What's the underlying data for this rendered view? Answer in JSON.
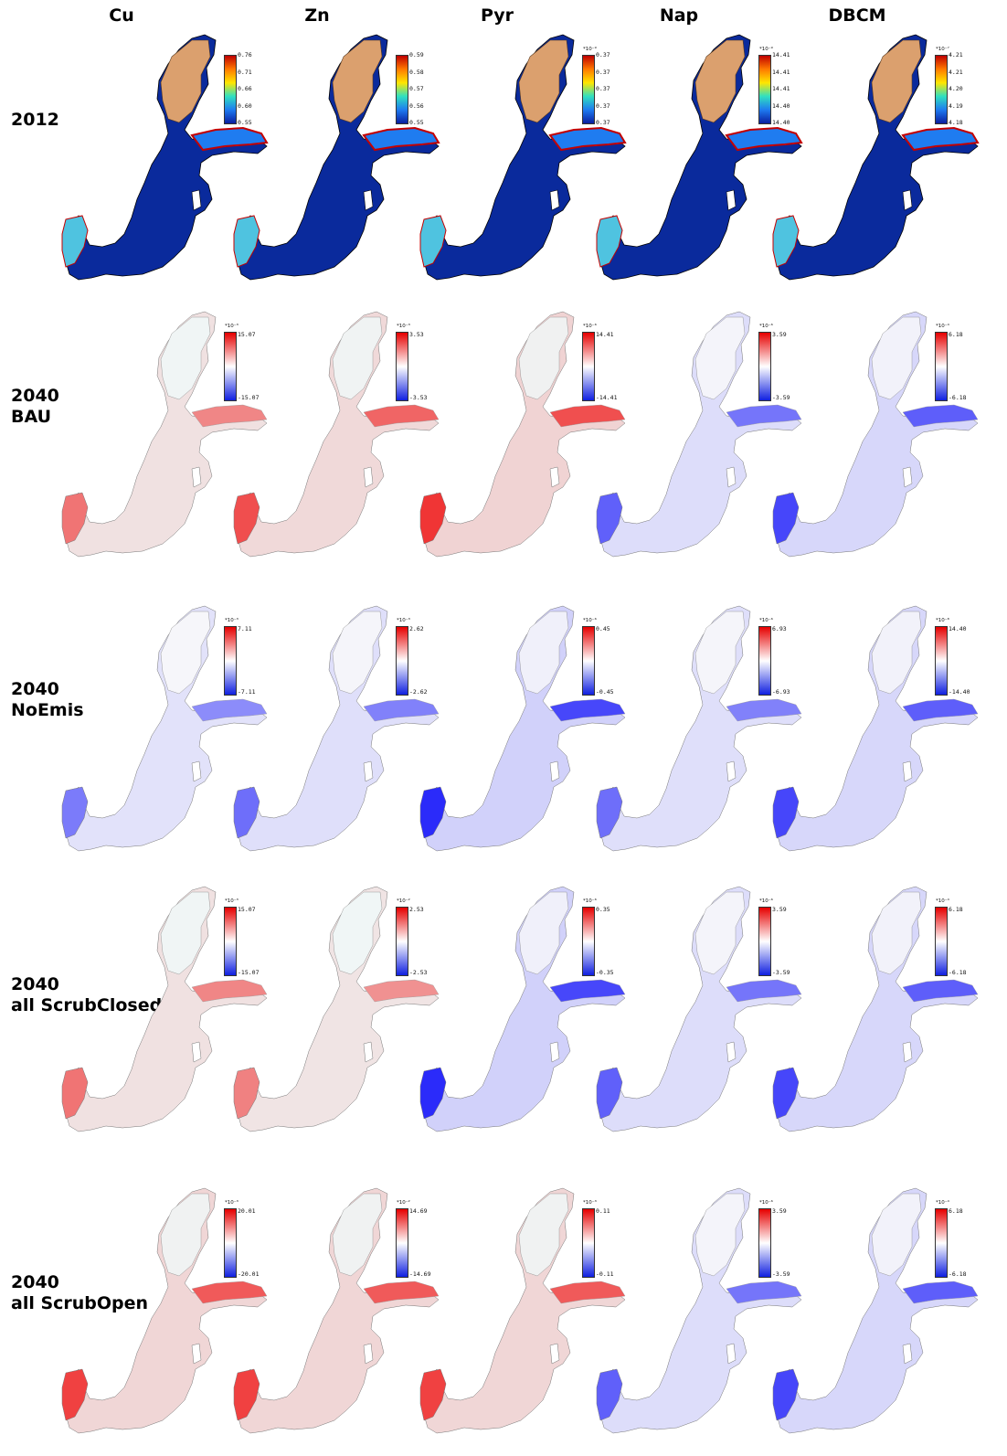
{
  "columns": [
    "Cu",
    "Zn",
    "Pyr",
    "Nap",
    "DBCM"
  ],
  "rows": [
    {
      "label": [
        "2012"
      ],
      "type": "absolute",
      "panels": [
        {
          "scale": "",
          "ticks": [
            "0.76",
            "0.71",
            "0.66",
            "0.60",
            "0.55"
          ]
        },
        {
          "scale": "",
          "ticks": [
            "0.59",
            "0.58",
            "0.57",
            "0.56",
            "0.55"
          ]
        },
        {
          "scale": "*10⁻⁹",
          "ticks": [
            "0.37",
            "0.37",
            "0.37",
            "0.37",
            "0.37"
          ]
        },
        {
          "scale": "*10⁻⁹",
          "ticks": [
            "14.41",
            "14.41",
            "14.41",
            "14.40",
            "14.40"
          ]
        },
        {
          "scale": "*10⁻⁷",
          "ticks": [
            "4.21",
            "4.21",
            "4.20",
            "4.19",
            "4.18"
          ]
        }
      ]
    },
    {
      "label": [
        "2040",
        "BAU"
      ],
      "type": "diff",
      "panels": [
        {
          "scale": "*10⁻³",
          "max": "15.07",
          "min": "-15.07",
          "tone": "red",
          "strength": 0.55
        },
        {
          "scale": "*10⁻³",
          "max": "3.53",
          "min": "-3.53",
          "tone": "red",
          "strength": 0.7
        },
        {
          "scale": "*10⁻⁶",
          "max": "14.41",
          "min": "-14.41",
          "tone": "red",
          "strength": 0.8
        },
        {
          "scale": "*10⁻⁶",
          "max": "3.59",
          "min": "-3.59",
          "tone": "blue",
          "strength": 0.6
        },
        {
          "scale": "*10⁻⁴",
          "max": "6.18",
          "min": "-6.18",
          "tone": "blue",
          "strength": 0.7
        }
      ]
    },
    {
      "label": [
        "2040",
        "NoEmis"
      ],
      "type": "diff",
      "panels": [
        {
          "scale": "*10⁻³",
          "max": "7.11",
          "min": "-7.11",
          "tone": "blue",
          "strength": 0.5
        },
        {
          "scale": "*10⁻³",
          "max": "2.62",
          "min": "-2.62",
          "tone": "blue",
          "strength": 0.55
        },
        {
          "scale": "*10⁻⁶",
          "max": "0.45",
          "min": "-0.45",
          "tone": "blue",
          "strength": 0.8
        },
        {
          "scale": "*10⁻⁶",
          "max": "6.93",
          "min": "-6.93",
          "tone": "blue",
          "strength": 0.55
        },
        {
          "scale": "*10⁻⁸",
          "max": "14.40",
          "min": "-14.40",
          "tone": "blue",
          "strength": 0.7
        }
      ]
    },
    {
      "label": [
        "2040",
        "all ScrubClosed"
      ],
      "type": "diff",
      "panels": [
        {
          "scale": "*10⁻³",
          "max": "15.07",
          "min": "-15.07",
          "tone": "red",
          "strength": 0.55
        },
        {
          "scale": "*10⁻²",
          "max": "2.53",
          "min": "-2.53",
          "tone": "red",
          "strength": 0.5
        },
        {
          "scale": "*10⁻⁶",
          "max": "0.35",
          "min": "-0.35",
          "tone": "blue",
          "strength": 0.8
        },
        {
          "scale": "*10⁻⁶",
          "max": "3.59",
          "min": "-3.59",
          "tone": "blue",
          "strength": 0.6
        },
        {
          "scale": "*10⁻⁴",
          "max": "6.18",
          "min": "-6.18",
          "tone": "blue",
          "strength": 0.7
        }
      ]
    },
    {
      "label": [
        "2040",
        "all ScrubOpen"
      ],
      "type": "diff",
      "panels": [
        {
          "scale": "*10⁻³",
          "max": "20.01",
          "min": "-20.01",
          "tone": "red",
          "strength": 0.75
        },
        {
          "scale": "*10⁻²",
          "max": "14.69",
          "min": "-14.69",
          "tone": "red",
          "strength": 0.75
        },
        {
          "scale": "*10⁻³",
          "max": "0.11",
          "min": "-0.11",
          "tone": "red",
          "strength": 0.75
        },
        {
          "scale": "*10⁻⁶",
          "max": "3.59",
          "min": "-3.59",
          "tone": "blue",
          "strength": 0.6
        },
        {
          "scale": "*10⁻⁴",
          "max": "6.18",
          "min": "-6.18",
          "tone": "blue",
          "strength": 0.7
        }
      ]
    }
  ]
}
